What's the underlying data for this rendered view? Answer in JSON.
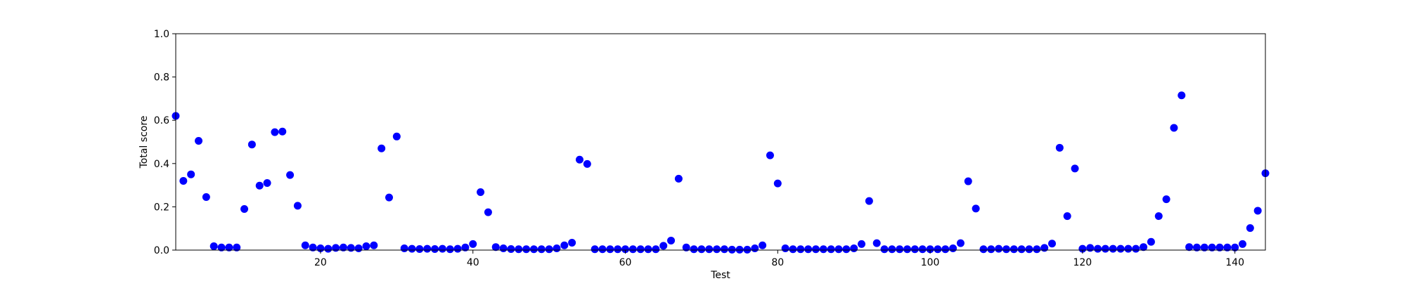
{
  "chart_data": {
    "type": "scatter",
    "title": "",
    "xlabel": "Test",
    "ylabel": "Total score",
    "xlim": [
      1,
      144
    ],
    "ylim": [
      0.0,
      1.0
    ],
    "xticks": [
      20,
      40,
      60,
      80,
      100,
      120,
      140
    ],
    "yticks": [
      0.0,
      0.2,
      0.4,
      0.6,
      0.8,
      1.0
    ],
    "xtick_labels": [
      "20",
      "40",
      "60",
      "80",
      "100",
      "120",
      "140"
    ],
    "ytick_labels": [
      "0.0",
      "0.2",
      "0.4",
      "0.6",
      "0.8",
      "1.0"
    ],
    "grid": false,
    "marker_color": "#0000ff",
    "x": [
      1,
      2,
      3,
      4,
      5,
      6,
      7,
      8,
      9,
      10,
      11,
      12,
      13,
      14,
      15,
      16,
      17,
      18,
      19,
      20,
      21,
      22,
      23,
      24,
      25,
      26,
      27,
      28,
      29,
      30,
      31,
      32,
      33,
      34,
      35,
      36,
      37,
      38,
      39,
      40,
      41,
      42,
      43,
      44,
      45,
      46,
      47,
      48,
      49,
      50,
      51,
      52,
      53,
      54,
      55,
      56,
      57,
      58,
      59,
      60,
      61,
      62,
      63,
      64,
      65,
      66,
      67,
      68,
      69,
      70,
      71,
      72,
      73,
      74,
      75,
      76,
      77,
      78,
      79,
      80,
      81,
      82,
      83,
      84,
      85,
      86,
      87,
      88,
      89,
      90,
      91,
      92,
      93,
      94,
      95,
      96,
      97,
      98,
      99,
      100,
      101,
      102,
      103,
      104,
      105,
      106,
      107,
      108,
      109,
      110,
      111,
      112,
      113,
      114,
      115,
      116,
      117,
      118,
      119,
      120,
      121,
      122,
      123,
      124,
      125,
      126,
      127,
      128,
      129,
      130,
      131,
      132,
      133,
      134,
      135,
      136,
      137,
      138,
      139,
      140,
      141,
      142,
      143,
      144
    ],
    "y": [
      0.62,
      0.32,
      0.35,
      0.505,
      0.245,
      0.018,
      0.012,
      0.012,
      0.012,
      0.19,
      0.488,
      0.298,
      0.31,
      0.545,
      0.548,
      0.347,
      0.205,
      0.022,
      0.012,
      0.008,
      0.006,
      0.01,
      0.012,
      0.01,
      0.008,
      0.018,
      0.022,
      0.47,
      0.243,
      0.525,
      0.008,
      0.006,
      0.005,
      0.006,
      0.005,
      0.006,
      0.004,
      0.006,
      0.012,
      0.028,
      0.268,
      0.175,
      0.014,
      0.008,
      0.005,
      0.004,
      0.004,
      0.004,
      0.004,
      0.004,
      0.008,
      0.022,
      0.034,
      0.418,
      0.398,
      0.004,
      0.004,
      0.004,
      0.004,
      0.004,
      0.004,
      0.004,
      0.004,
      0.004,
      0.02,
      0.044,
      0.33,
      0.012,
      0.004,
      0.004,
      0.004,
      0.004,
      0.004,
      0.002,
      0.002,
      0.002,
      0.008,
      0.022,
      0.438,
      0.308,
      0.008,
      0.004,
      0.004,
      0.004,
      0.004,
      0.004,
      0.004,
      0.004,
      0.004,
      0.008,
      0.028,
      0.227,
      0.032,
      0.004,
      0.004,
      0.004,
      0.004,
      0.004,
      0.004,
      0.004,
      0.004,
      0.004,
      0.008,
      0.032,
      0.318,
      0.192,
      0.004,
      0.004,
      0.006,
      0.004,
      0.004,
      0.004,
      0.004,
      0.004,
      0.01,
      0.03,
      0.473,
      0.157,
      0.377,
      0.006,
      0.01,
      0.006,
      0.006,
      0.006,
      0.006,
      0.006,
      0.006,
      0.014,
      0.038,
      0.157,
      0.235,
      0.565,
      0.715,
      0.014,
      0.012,
      0.012,
      0.012,
      0.012,
      0.012,
      0.012,
      0.028,
      0.102,
      0.182,
      0.355
    ]
  }
}
